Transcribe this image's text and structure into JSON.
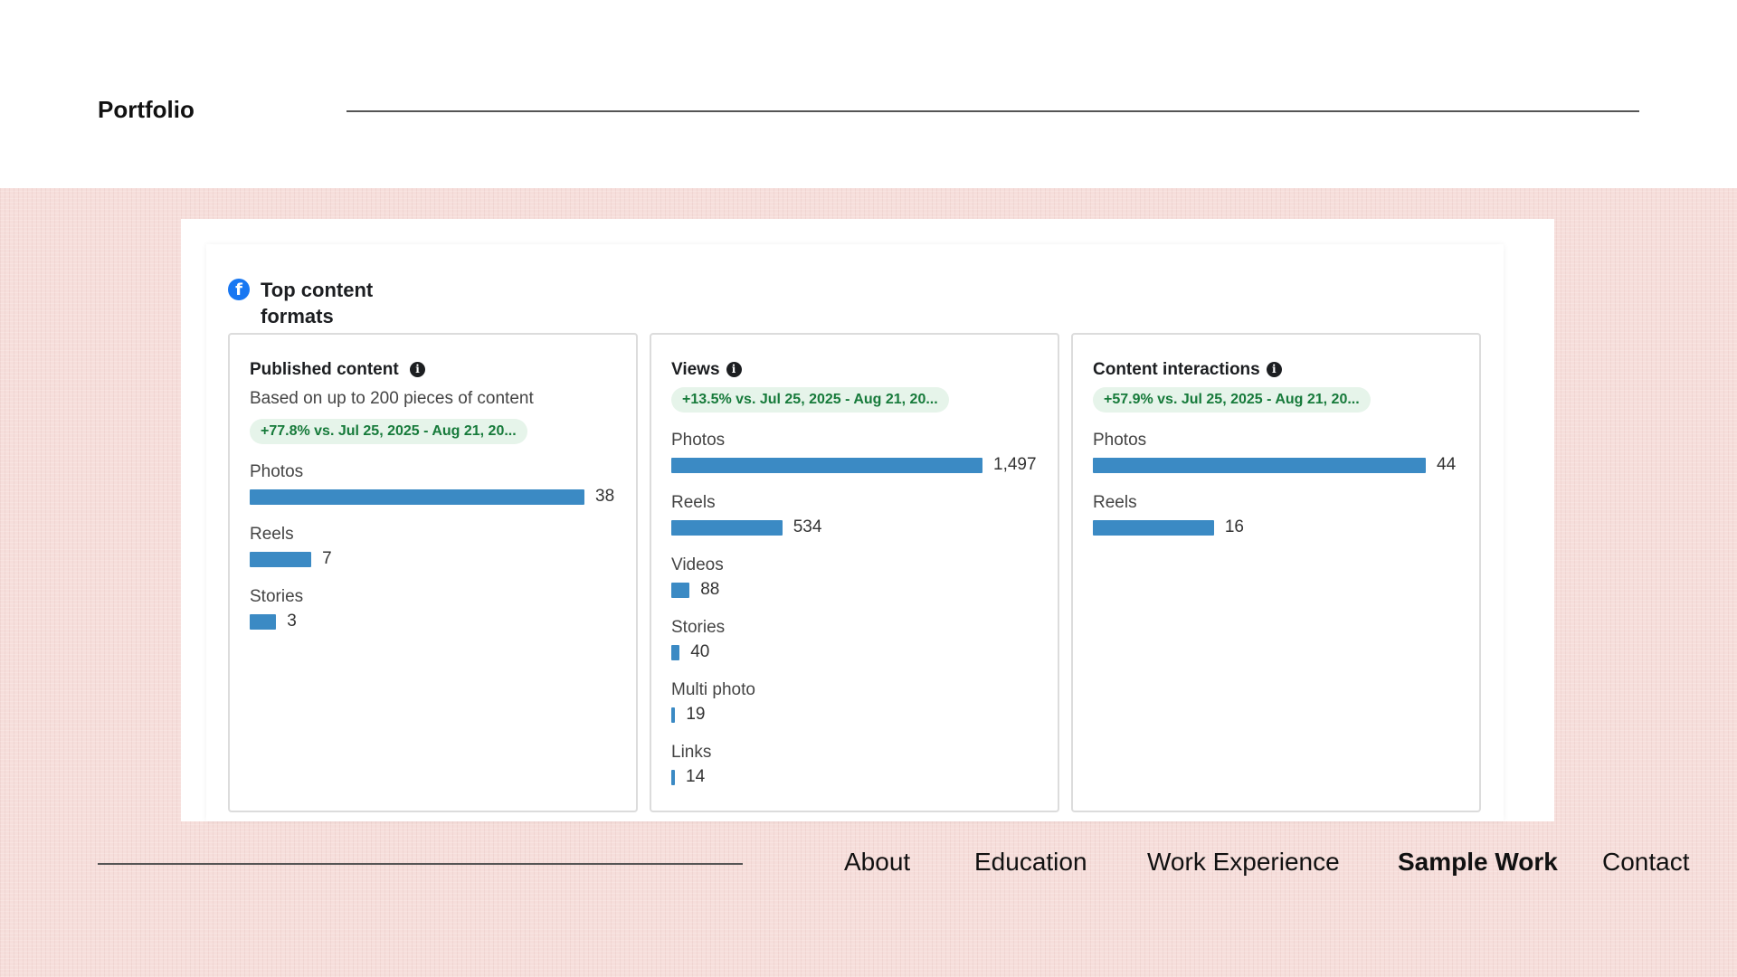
{
  "header": {
    "title": "Portfolio"
  },
  "section": {
    "title": "Top content formats",
    "icon": "facebook-icon"
  },
  "colors": {
    "bar": "#3b8ac4",
    "badge_bg": "#e6f4ea",
    "badge_text": "#167a3a",
    "facebook": "#1877f2"
  },
  "cards": [
    {
      "title": "Published content",
      "note": "Based on up to 200 pieces of content",
      "badge": "+77.8% vs. Jul 25, 2025 - Aug 21, 20...",
      "max": 38,
      "rows": [
        {
          "label": "Photos",
          "value": 38,
          "display": "38"
        },
        {
          "label": "Reels",
          "value": 7,
          "display": "7"
        },
        {
          "label": "Stories",
          "value": 3,
          "display": "3"
        }
      ]
    },
    {
      "title": "Views",
      "note": "",
      "badge": "+13.5% vs. Jul 25, 2025 - Aug 21, 20...",
      "max": 1497,
      "rows": [
        {
          "label": "Photos",
          "value": 1497,
          "display": "1,497"
        },
        {
          "label": "Reels",
          "value": 534,
          "display": "534"
        },
        {
          "label": "Videos",
          "value": 88,
          "display": "88"
        },
        {
          "label": "Stories",
          "value": 40,
          "display": "40"
        },
        {
          "label": "Multi photo",
          "value": 19,
          "display": "19"
        },
        {
          "label": "Links",
          "value": 14,
          "display": "14"
        }
      ]
    },
    {
      "title": "Content interactions",
      "note": "",
      "badge": "+57.9% vs. Jul 25, 2025 - Aug 21, 20...",
      "max": 44,
      "rows": [
        {
          "label": "Photos",
          "value": 44,
          "display": "44"
        },
        {
          "label": "Reels",
          "value": 16,
          "display": "16"
        }
      ]
    }
  ],
  "nav": {
    "items": [
      {
        "label": "About",
        "active": false
      },
      {
        "label": "Education",
        "active": false
      },
      {
        "label": "Work Experience",
        "active": false
      },
      {
        "label": "Sample Work",
        "active": true
      },
      {
        "label": "Contact",
        "active": false
      }
    ]
  }
}
